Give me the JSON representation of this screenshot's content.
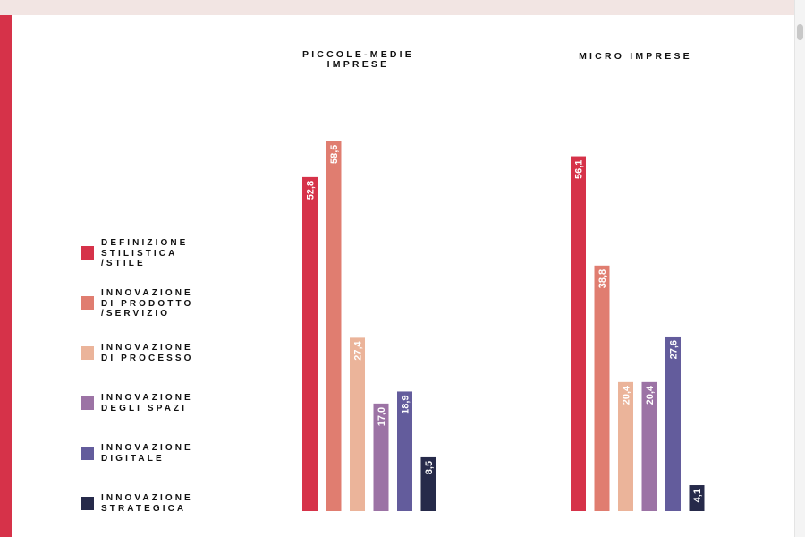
{
  "colors": {
    "accent": "#d63249",
    "background": "#ffffff",
    "top_band": "#f2e5e3"
  },
  "legend": [
    {
      "label": "DEFINIZIONE\nSTILISTICA\n/STILE",
      "color": "#d63249"
    },
    {
      "label": "INNOVAZIONE\nDI PRODOTTO\n/SERVIZIO",
      "color": "#e07d70"
    },
    {
      "label": "INNOVAZIONE\nDI PROCESSO",
      "color": "#ebb49a"
    },
    {
      "label": "INNOVAZIONE\nDEGLI SPAZI",
      "color": "#9c73a5"
    },
    {
      "label": "INNOVAZIONE\nDIGITALE",
      "color": "#635c9c"
    },
    {
      "label": "INNOVAZIONE\nSTRATEGICA",
      "color": "#262a4a"
    }
  ],
  "chart_data": [
    {
      "type": "bar",
      "title": "PICCOLE-MEDIE\nIMPRESE",
      "categories": [
        "DEFINIZIONE STILISTICA /STILE",
        "INNOVAZIONE DI PRODOTTO /SERVIZIO",
        "INNOVAZIONE DI PROCESSO",
        "INNOVAZIONE DEGLI SPAZI",
        "INNOVAZIONE DIGITALE",
        "INNOVAZIONE STRATEGICA"
      ],
      "values": [
        52.8,
        58.5,
        27.4,
        17.0,
        18.9,
        8.5
      ],
      "value_labels": [
        "52,8",
        "58,5",
        "27,4",
        "17,0",
        "18,9",
        "8,5"
      ],
      "ylim": [
        0,
        60
      ],
      "grid": false
    },
    {
      "type": "bar",
      "title": "MICRO IMPRESE",
      "categories": [
        "DEFINIZIONE STILISTICA /STILE",
        "INNOVAZIONE DI PRODOTTO /SERVIZIO",
        "INNOVAZIONE DI PROCESSO",
        "INNOVAZIONE DEGLI SPAZI",
        "INNOVAZIONE DIGITALE",
        "INNOVAZIONE STRATEGICA"
      ],
      "values": [
        56.1,
        38.8,
        20.4,
        20.4,
        27.6,
        4.1
      ],
      "value_labels": [
        "56,1",
        "38,8",
        "20,4",
        "20,4",
        "27,6",
        "4,1"
      ],
      "ylim": [
        0,
        60
      ],
      "grid": false
    }
  ]
}
